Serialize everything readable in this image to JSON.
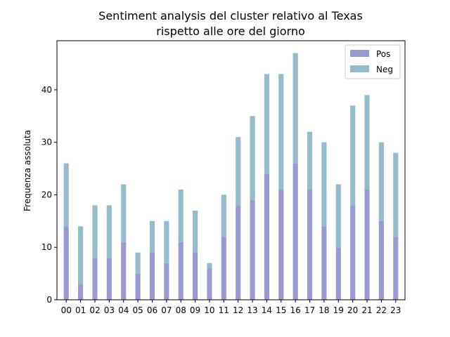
{
  "chart_data": {
    "type": "bar",
    "stacked": true,
    "title_line1": "Sentiment analysis del cluster relativo al Texas",
    "title_line2": "rispetto alle ore del giorno",
    "xlabel": "",
    "ylabel": "Frequenza assoluta",
    "ylim": [
      0,
      49.35
    ],
    "yticks": [
      0,
      10,
      20,
      30,
      40
    ],
    "categories": [
      "00",
      "01",
      "02",
      "03",
      "04",
      "05",
      "06",
      "07",
      "08",
      "09",
      "10",
      "11",
      "12",
      "13",
      "14",
      "15",
      "16",
      "17",
      "18",
      "19",
      "20",
      "21",
      "22",
      "23"
    ],
    "series": [
      {
        "name": "Pos",
        "color": "#9a9ad2",
        "values": [
          14,
          3,
          8,
          8,
          11,
          5,
          9,
          7,
          11,
          9,
          6,
          12,
          18,
          19,
          24,
          21,
          26,
          21,
          14,
          10,
          18,
          21,
          15,
          12
        ]
      },
      {
        "name": "Neg",
        "color": "#94bcc9",
        "values": [
          12,
          11,
          10,
          10,
          11,
          4,
          6,
          8,
          10,
          8,
          1,
          8,
          13,
          16,
          19,
          22,
          21,
          11,
          16,
          12,
          19,
          18,
          15,
          16
        ]
      }
    ],
    "grid": false,
    "legend_position": "top-right"
  }
}
